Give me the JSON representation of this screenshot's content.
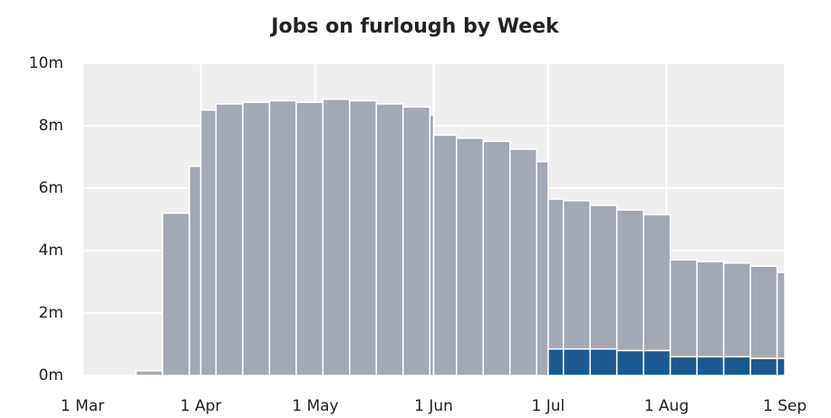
{
  "chart_data": {
    "type": "histogram",
    "title": "Jobs on furlough by Week",
    "bins": [
      0,
      7,
      14,
      21,
      28,
      31,
      35,
      42,
      49,
      56,
      63,
      70,
      77,
      84,
      91,
      92,
      98,
      105,
      112,
      119,
      122,
      126,
      133,
      140,
      147,
      154,
      161,
      168,
      175,
      182,
      184
    ],
    "series": [
      {
        "color": "#1b5a92",
        "values": [
          0,
          0,
          0,
          0,
          0,
          0,
          0,
          0,
          0,
          0,
          0,
          0,
          0,
          0,
          0,
          0,
          0,
          0,
          0,
          0,
          0.85,
          0.85,
          0.85,
          0.8,
          0.8,
          0.6,
          0.6,
          0.6,
          0.55,
          0.55
        ]
      },
      {
        "color": "#a3a8b5",
        "values": [
          0.01,
          0.01,
          0.15,
          5.2,
          6.7,
          8.5,
          8.7,
          8.75,
          8.8,
          8.75,
          8.85,
          8.8,
          8.7,
          8.6,
          8.35,
          7.7,
          7.6,
          7.5,
          7.25,
          6.85,
          4.8,
          4.75,
          4.6,
          4.5,
          4.35,
          3.1,
          3.05,
          3.0,
          2.95,
          2.75
        ]
      }
    ],
    "xlim": [
      0,
      184
    ],
    "xticks": [
      {
        "value": 0,
        "label": "1 Mar"
      },
      {
        "value": 31,
        "label": "1 Apr"
      },
      {
        "value": 61,
        "label": "1 May"
      },
      {
        "value": 92,
        "label": "1 Jun"
      },
      {
        "value": 122,
        "label": "1 Jul"
      },
      {
        "value": 153,
        "label": "1 Aug"
      },
      {
        "value": 184,
        "label": "1 Sep"
      }
    ],
    "ylim": [
      0,
      10
    ],
    "yticks": [
      {
        "value": 0,
        "label": "0m"
      },
      {
        "value": 2,
        "label": "2m"
      },
      {
        "value": 4,
        "label": "4m"
      },
      {
        "value": 6,
        "label": "6m"
      },
      {
        "value": 8,
        "label": "8m"
      },
      {
        "value": 10,
        "label": "10m"
      }
    ],
    "grid": true
  }
}
